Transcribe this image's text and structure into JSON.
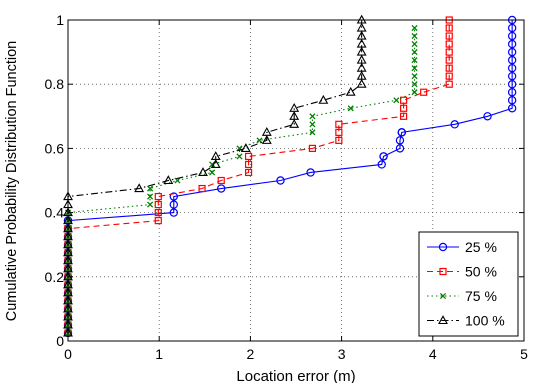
{
  "chart_data": {
    "type": "line",
    "title": "",
    "xlabel": "Location error (m)",
    "ylabel": "Cumulative Probability Distribution Function",
    "xlim": [
      0,
      5
    ],
    "ylim": [
      0,
      1
    ],
    "xticks": [
      0,
      1,
      2,
      3,
      4,
      5
    ],
    "yticks": [
      0,
      0.2,
      0.4,
      0.6,
      0.8,
      1
    ],
    "xtick_labels": [
      "0",
      "1",
      "2",
      "3",
      "4",
      "5"
    ],
    "ytick_labels": [
      "0",
      "0.2",
      "0.4",
      "0.6",
      "0.8",
      "1"
    ],
    "grid": true,
    "legend_position": "bottom-right",
    "series": [
      {
        "name": "25 %",
        "color": "#0000ff",
        "marker": "circle",
        "dash": "solid",
        "x": [
          0,
          0,
          0,
          0,
          0,
          0,
          0,
          0,
          0,
          0,
          0,
          0,
          0,
          0,
          0,
          0,
          1.16,
          1.16,
          1.16,
          1.68,
          2.33,
          2.66,
          3.44,
          3.46,
          3.46,
          3.64,
          3.64,
          3.66,
          3.66,
          4.24,
          4.6,
          4.87,
          4.87,
          4.87,
          4.87,
          4.87,
          4.87,
          4.87,
          4.87,
          4.87,
          4.87,
          4.87,
          4.87
        ],
        "y": [
          0.025,
          0.05,
          0.075,
          0.1,
          0.125,
          0.15,
          0.175,
          0.2,
          0.225,
          0.25,
          0.275,
          0.3,
          0.325,
          0.35,
          0.375,
          0.375,
          0.4,
          0.425,
          0.45,
          0.475,
          0.5,
          0.525,
          0.55,
          0.575,
          0.575,
          0.6,
          0.625,
          0.65,
          0.65,
          0.675,
          0.7,
          0.725,
          0.75,
          0.775,
          0.8,
          0.825,
          0.85,
          0.875,
          0.9,
          0.925,
          0.95,
          0.975,
          1.0
        ]
      },
      {
        "name": "50 %",
        "color": "#ff0000",
        "marker": "square",
        "dash": "dashed",
        "x": [
          0,
          0,
          0,
          0,
          0,
          0,
          0,
          0,
          0,
          0,
          0,
          0,
          0,
          0,
          0,
          0.99,
          0.99,
          0.99,
          0.99,
          1.47,
          1.68,
          1.98,
          1.98,
          1.98,
          2.68,
          2.97,
          2.97,
          2.97,
          3.68,
          3.68,
          3.68,
          3.9,
          4.18,
          4.18,
          4.18,
          4.18,
          4.18,
          4.18,
          4.18,
          4.18,
          4.18
        ],
        "y": [
          0.025,
          0.05,
          0.075,
          0.1,
          0.125,
          0.15,
          0.175,
          0.2,
          0.225,
          0.25,
          0.275,
          0.3,
          0.325,
          0.35,
          0.35,
          0.375,
          0.4,
          0.425,
          0.45,
          0.475,
          0.5,
          0.525,
          0.55,
          0.575,
          0.6,
          0.625,
          0.65,
          0.675,
          0.7,
          0.725,
          0.75,
          0.775,
          0.8,
          0.825,
          0.85,
          0.875,
          0.9,
          0.925,
          0.95,
          0.975,
          1.0
        ]
      },
      {
        "name": "75 %",
        "color": "#008000",
        "marker": "x",
        "dash": "dotted",
        "x": [
          0,
          0,
          0,
          0,
          0,
          0,
          0,
          0,
          0,
          0,
          0,
          0,
          0,
          0,
          0,
          0,
          0.9,
          0.9,
          0.9,
          1.2,
          1.58,
          1.58,
          1.88,
          1.88,
          2.1,
          2.68,
          2.68,
          2.68,
          3.1,
          3.6,
          3.8,
          3.8,
          3.8,
          3.8,
          3.8,
          3.8,
          3.8,
          3.8,
          3.8
        ],
        "y": [
          0.025,
          0.05,
          0.075,
          0.1,
          0.125,
          0.15,
          0.175,
          0.2,
          0.225,
          0.25,
          0.275,
          0.3,
          0.325,
          0.35,
          0.375,
          0.4,
          0.425,
          0.45,
          0.475,
          0.5,
          0.525,
          0.55,
          0.575,
          0.6,
          0.625,
          0.65,
          0.675,
          0.7,
          0.725,
          0.75,
          0.775,
          0.8,
          0.825,
          0.85,
          0.875,
          0.9,
          0.925,
          0.95,
          0.975
        ]
      },
      {
        "name": "100 %",
        "color": "#000000",
        "marker": "triangle",
        "dash": "dashdot",
        "x": [
          0,
          0,
          0,
          0,
          0,
          0,
          0,
          0,
          0,
          0,
          0,
          0,
          0,
          0,
          0,
          0,
          0,
          0,
          0.78,
          1.1,
          1.48,
          1.62,
          1.62,
          1.95,
          2.18,
          2.18,
          2.48,
          2.48,
          2.48,
          2.8,
          3.1,
          3.22,
          3.22,
          3.22,
          3.22,
          3.22,
          3.22,
          3.22,
          3.22,
          3.22
        ],
        "y": [
          0.025,
          0.05,
          0.075,
          0.1,
          0.125,
          0.15,
          0.175,
          0.2,
          0.225,
          0.25,
          0.275,
          0.3,
          0.325,
          0.35,
          0.375,
          0.4,
          0.425,
          0.45,
          0.475,
          0.5,
          0.525,
          0.55,
          0.575,
          0.6,
          0.625,
          0.65,
          0.675,
          0.7,
          0.725,
          0.75,
          0.775,
          0.8,
          0.825,
          0.85,
          0.875,
          0.9,
          0.925,
          0.95,
          0.975,
          1.0
        ]
      }
    ]
  }
}
